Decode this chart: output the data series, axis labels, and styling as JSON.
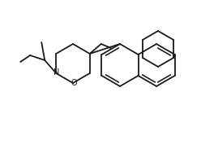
{
  "bg_color": "#ffffff",
  "line_color": "#1a1a1a",
  "line_width": 1.3,
  "figsize": [
    2.48,
    1.88
  ],
  "dpi": 100
}
